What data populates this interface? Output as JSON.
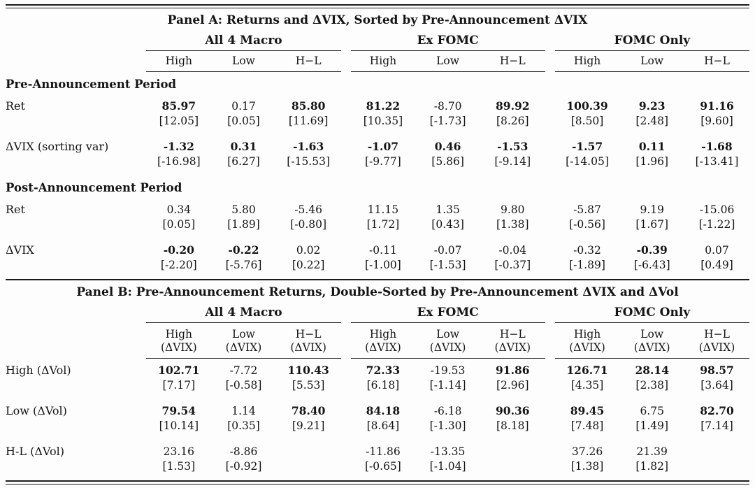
{
  "panelA": {
    "title": "Panel A: Returns and ΔVIX, Sorted by Pre-Announcement ΔVIX",
    "groups": [
      "All 4 Macro",
      "Ex FOMC",
      "FOMC Only"
    ],
    "col_headers": [
      "High",
      "Low",
      "H−L"
    ],
    "sections": [
      {
        "label": "Pre-Announcement Period",
        "rows": [
          {
            "label": "Ret",
            "cells": [
              {
                "v": "85.97",
                "t": "[12.05]",
                "b": true
              },
              {
                "v": "0.17",
                "t": "[0.05]",
                "b": false
              },
              {
                "v": "85.80",
                "t": "[11.69]",
                "b": true
              },
              {
                "v": "81.22",
                "t": "[10.35]",
                "b": true
              },
              {
                "v": "-8.70",
                "t": "[-1.73]",
                "b": false
              },
              {
                "v": "89.92",
                "t": "[8.26]",
                "b": true
              },
              {
                "v": "100.39",
                "t": "[8.50]",
                "b": true
              },
              {
                "v": "9.23",
                "t": "[2.48]",
                "b": true
              },
              {
                "v": "91.16",
                "t": "[9.60]",
                "b": true
              }
            ]
          },
          {
            "label": "ΔVIX (sorting var)",
            "cells": [
              {
                "v": "-1.32",
                "t": "[-16.98]",
                "b": true
              },
              {
                "v": "0.31",
                "t": "[6.27]",
                "b": true
              },
              {
                "v": "-1.63",
                "t": "[-15.53]",
                "b": true
              },
              {
                "v": "-1.07",
                "t": "[-9.77]",
                "b": true
              },
              {
                "v": "0.46",
                "t": "[5.86]",
                "b": true
              },
              {
                "v": "-1.53",
                "t": "[-9.14]",
                "b": true
              },
              {
                "v": "-1.57",
                "t": "[-14.05]",
                "b": true
              },
              {
                "v": "0.11",
                "t": "[1.96]",
                "b": true
              },
              {
                "v": "-1.68",
                "t": "[-13.41]",
                "b": true
              }
            ]
          }
        ]
      },
      {
        "label": "Post-Announcement Period",
        "rows": [
          {
            "label": "Ret",
            "cells": [
              {
                "v": "0.34",
                "t": "[0.05]",
                "b": false
              },
              {
                "v": "5.80",
                "t": "[1.89]",
                "b": false
              },
              {
                "v": "-5.46",
                "t": "[-0.80]",
                "b": false
              },
              {
                "v": "11.15",
                "t": "[1.72]",
                "b": false
              },
              {
                "v": "1.35",
                "t": "[0.43]",
                "b": false
              },
              {
                "v": "9.80",
                "t": "[1.38]",
                "b": false
              },
              {
                "v": "-5.87",
                "t": "[-0.56]",
                "b": false
              },
              {
                "v": "9.19",
                "t": "[1.67]",
                "b": false
              },
              {
                "v": "-15.06",
                "t": "[-1.22]",
                "b": false
              }
            ]
          },
          {
            "label": "ΔVIX",
            "cells": [
              {
                "v": "-0.20",
                "t": "[-2.20]",
                "b": true
              },
              {
                "v": "-0.22",
                "t": "[-5.76]",
                "b": true
              },
              {
                "v": "0.02",
                "t": "[0.22]",
                "b": false
              },
              {
                "v": "-0.11",
                "t": "[-1.00]",
                "b": false
              },
              {
                "v": "-0.07",
                "t": "[-1.53]",
                "b": false
              },
              {
                "v": "-0.04",
                "t": "[-0.37]",
                "b": false
              },
              {
                "v": "-0.32",
                "t": "[-1.89]",
                "b": false
              },
              {
                "v": "-0.39",
                "t": "[-6.43]",
                "b": true
              },
              {
                "v": "0.07",
                "t": "[0.49]",
                "b": false
              }
            ]
          }
        ]
      }
    ]
  },
  "panelB": {
    "title": "Panel B: Pre-Announcement Returns, Double-Sorted by Pre-Announcement ΔVIX and ΔVol",
    "groups": [
      "All 4 Macro",
      "Ex FOMC",
      "FOMC Only"
    ],
    "col_headers": [
      "High",
      "Low",
      "H−L"
    ],
    "col_subheader": "(ΔVIX)",
    "rows": [
      {
        "label": "High (ΔVol)",
        "cells": [
          {
            "v": "102.71",
            "t": "[7.17]",
            "b": true
          },
          {
            "v": "-7.72",
            "t": "[-0.58]",
            "b": false
          },
          {
            "v": "110.43",
            "t": "[5.53]",
            "b": true
          },
          {
            "v": "72.33",
            "t": "[6.18]",
            "b": true
          },
          {
            "v": "-19.53",
            "t": "[-1.14]",
            "b": false
          },
          {
            "v": "91.86",
            "t": "[2.96]",
            "b": true
          },
          {
            "v": "126.71",
            "t": "[4.35]",
            "b": true
          },
          {
            "v": "28.14",
            "t": "[2.38]",
            "b": true
          },
          {
            "v": "98.57",
            "t": "[3.64]",
            "b": true
          }
        ]
      },
      {
        "label": "Low (ΔVol)",
        "cells": [
          {
            "v": "79.54",
            "t": "[10.14]",
            "b": true
          },
          {
            "v": "1.14",
            "t": "[0.35]",
            "b": false
          },
          {
            "v": "78.40",
            "t": "[9.21]",
            "b": true
          },
          {
            "v": "84.18",
            "t": "[8.64]",
            "b": true
          },
          {
            "v": "-6.18",
            "t": "[-1.30]",
            "b": false
          },
          {
            "v": "90.36",
            "t": "[8.18]",
            "b": true
          },
          {
            "v": "89.45",
            "t": "[7.48]",
            "b": true
          },
          {
            "v": "6.75",
            "t": "[1.49]",
            "b": false
          },
          {
            "v": "82.70",
            "t": "[7.14]",
            "b": true
          }
        ]
      },
      {
        "label": "H-L (ΔVol)",
        "cells": [
          {
            "v": "23.16",
            "t": "[1.53]",
            "b": false
          },
          {
            "v": "-8.86",
            "t": "[-0.92]",
            "b": false
          },
          {
            "v": "",
            "t": "",
            "b": false
          },
          {
            "v": "-11.86",
            "t": "[-0.65]",
            "b": false
          },
          {
            "v": "-13.35",
            "t": "[-1.04]",
            "b": false
          },
          {
            "v": "",
            "t": "",
            "b": false
          },
          {
            "v": "37.26",
            "t": "[1.38]",
            "b": false
          },
          {
            "v": "21.39",
            "t": "[1.82]",
            "b": false
          },
          {
            "v": "",
            "t": "",
            "b": false
          }
        ]
      }
    ]
  }
}
